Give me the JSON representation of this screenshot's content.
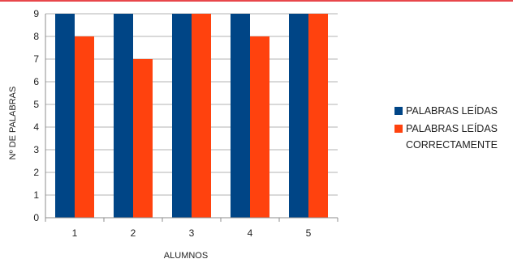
{
  "colors": {
    "accent_rule": "#e8474b",
    "grid": "#b3b3b3",
    "axis": "#8c8c8c"
  },
  "chart_data": {
    "type": "bar",
    "title": "",
    "xlabel": "ALUMNOS",
    "ylabel": "Nº DE PALABRAS",
    "categories": [
      "1",
      "2",
      "3",
      "4",
      "5"
    ],
    "ylim": [
      0,
      9
    ],
    "yticks": [
      0,
      1,
      2,
      3,
      4,
      5,
      6,
      7,
      8,
      9
    ],
    "grid": true,
    "legend_position": "right",
    "series": [
      {
        "name": "PALABRAS LEÍDAS",
        "color": "#004586",
        "values": [
          9,
          9,
          9,
          9,
          9
        ]
      },
      {
        "name": "PALABRAS LEÍDAS CORRECTAMENTE",
        "color": "#ff420e",
        "values": [
          8,
          7,
          9,
          8,
          9
        ]
      }
    ],
    "legend_lines": [
      [
        "PALABRAS LEÍDAS"
      ],
      [
        "PALABRAS LEÍDAS",
        "CORRECTAMENTE"
      ]
    ]
  }
}
